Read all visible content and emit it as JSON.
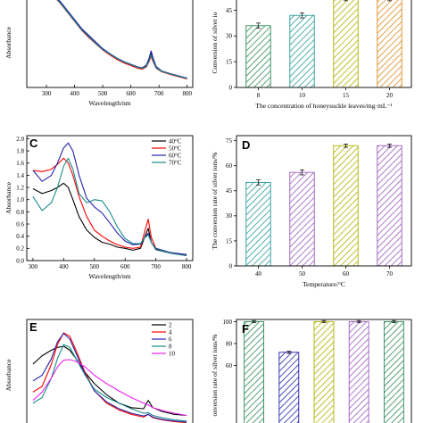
{
  "chart_data": [
    {
      "panel": "A",
      "type": "line",
      "label": "",
      "xlabel": "Wavelength/nm",
      "ylabel": "Absorbance",
      "xlim": [
        230,
        820
      ],
      "ylim": [
        0,
        2.0
      ],
      "xticks": [
        300,
        400,
        500,
        600,
        700,
        800
      ],
      "yticks": [],
      "series": [
        {
          "name": "",
          "color": "#000000",
          "x": [
            335,
            350,
            375,
            400,
            425,
            450,
            475,
            500,
            525,
            550,
            575,
            600,
            625,
            640,
            655,
            665,
            672,
            680,
            690,
            710,
            740,
            770,
            800
          ],
          "y": [
            2.0,
            1.9,
            1.7,
            1.5,
            1.3,
            1.15,
            1.0,
            0.85,
            0.74,
            0.64,
            0.56,
            0.5,
            0.44,
            0.42,
            0.48,
            0.62,
            0.76,
            0.6,
            0.45,
            0.36,
            0.3,
            0.25,
            0.2
          ]
        },
        {
          "name": "",
          "color": "#ff0000",
          "x": [
            335,
            350,
            375,
            400,
            425,
            450,
            475,
            500,
            525,
            550,
            575,
            600,
            625,
            640,
            655,
            665,
            672,
            680,
            690,
            710,
            740,
            770,
            800
          ],
          "y": [
            1.98,
            1.88,
            1.68,
            1.48,
            1.28,
            1.12,
            0.98,
            0.84,
            0.73,
            0.63,
            0.55,
            0.49,
            0.43,
            0.41,
            0.46,
            0.58,
            0.7,
            0.56,
            0.43,
            0.35,
            0.29,
            0.24,
            0.19
          ]
        },
        {
          "name": "",
          "color": "#2222aa",
          "x": [
            335,
            350,
            375,
            400,
            425,
            450,
            475,
            500,
            525,
            550,
            575,
            600,
            625,
            640,
            655,
            665,
            672,
            680,
            690,
            710,
            740,
            770,
            800
          ],
          "y": [
            2.02,
            1.92,
            1.72,
            1.52,
            1.32,
            1.17,
            1.02,
            0.87,
            0.76,
            0.66,
            0.58,
            0.52,
            0.46,
            0.44,
            0.5,
            0.66,
            0.82,
            0.64,
            0.47,
            0.37,
            0.31,
            0.26,
            0.21
          ]
        },
        {
          "name": "",
          "color": "#1a8a8a",
          "x": [
            335,
            350,
            375,
            400,
            425,
            450,
            475,
            500,
            525,
            550,
            575,
            600,
            625,
            640,
            655,
            665,
            672,
            680,
            690,
            710,
            740,
            770,
            800
          ],
          "y": [
            1.99,
            1.89,
            1.69,
            1.49,
            1.29,
            1.14,
            0.99,
            0.85,
            0.75,
            0.65,
            0.57,
            0.51,
            0.45,
            0.43,
            0.47,
            0.6,
            0.73,
            0.58,
            0.44,
            0.36,
            0.3,
            0.25,
            0.2
          ]
        }
      ]
    },
    {
      "panel": "B",
      "type": "bar",
      "label": "",
      "xlabel": "The concentration of honeysuckle leaves/mg·mL⁻¹",
      "ylabel": "Conversion of silver io",
      "categories": [
        "8",
        "10",
        "15",
        "20"
      ],
      "values": [
        36,
        42,
        52,
        52
      ],
      "errors": [
        1.5,
        1.5,
        1.5,
        1.5
      ],
      "colors": [
        "#2e8b57",
        "#2a9a9a",
        "#b0b000",
        "#e08a20"
      ],
      "ylim": [
        0,
        52
      ],
      "yticks": [
        0,
        15,
        30,
        45
      ]
    },
    {
      "panel": "C",
      "type": "line",
      "label": "C",
      "xlabel": "Wavelength/nm",
      "ylabel": "Absorbance",
      "xlim": [
        280,
        820
      ],
      "ylim": [
        0,
        2.05
      ],
      "xticks": [
        300,
        400,
        500,
        600,
        700,
        800
      ],
      "yticks": [
        0.0,
        0.2,
        0.4,
        0.6,
        0.8,
        1.0,
        1.2,
        1.4,
        1.6,
        1.8,
        2.0
      ],
      "series": [
        {
          "name": "40°C",
          "color": "#000000",
          "x": [
            300,
            330,
            360,
            380,
            400,
            415,
            430,
            450,
            475,
            500,
            525,
            550,
            575,
            600,
            625,
            650,
            665,
            675,
            685,
            700,
            750,
            800
          ],
          "y": [
            1.18,
            1.1,
            1.15,
            1.2,
            1.27,
            1.2,
            1.0,
            0.72,
            0.5,
            0.38,
            0.3,
            0.27,
            0.22,
            0.2,
            0.17,
            0.2,
            0.4,
            0.53,
            0.3,
            0.18,
            0.12,
            0.08
          ]
        },
        {
          "name": "50°C",
          "color": "#ff0000",
          "x": [
            300,
            330,
            360,
            380,
            400,
            415,
            430,
            450,
            475,
            500,
            525,
            550,
            575,
            600,
            625,
            650,
            665,
            675,
            685,
            700,
            750,
            800
          ],
          "y": [
            1.48,
            1.46,
            1.5,
            1.58,
            1.68,
            1.6,
            1.4,
            1.05,
            0.72,
            0.5,
            0.4,
            0.32,
            0.26,
            0.22,
            0.2,
            0.22,
            0.5,
            0.68,
            0.38,
            0.2,
            0.12,
            0.09
          ]
        },
        {
          "name": "60°C",
          "color": "#2222aa",
          "x": [
            300,
            330,
            360,
            380,
            400,
            415,
            430,
            450,
            475,
            500,
            525,
            550,
            575,
            600,
            625,
            650,
            665,
            675,
            685,
            700,
            750,
            800
          ],
          "y": [
            1.48,
            1.3,
            1.4,
            1.6,
            1.85,
            1.93,
            1.8,
            1.4,
            1.02,
            0.88,
            0.78,
            0.62,
            0.45,
            0.32,
            0.26,
            0.27,
            0.38,
            0.45,
            0.3,
            0.2,
            0.13,
            0.1
          ]
        },
        {
          "name": "70°C",
          "color": "#1a8a8a",
          "x": [
            300,
            330,
            360,
            380,
            400,
            415,
            430,
            450,
            475,
            500,
            525,
            550,
            575,
            600,
            625,
            650,
            665,
            675,
            685,
            700,
            750,
            800
          ],
          "y": [
            1.05,
            0.82,
            0.95,
            1.2,
            1.55,
            1.68,
            1.5,
            1.1,
            0.95,
            1.0,
            0.98,
            0.8,
            0.55,
            0.36,
            0.28,
            0.28,
            0.38,
            0.42,
            0.3,
            0.19,
            0.12,
            0.08
          ]
        }
      ]
    },
    {
      "panel": "D",
      "type": "bar",
      "label": "D",
      "xlabel": "Temperature/°C",
      "ylabel": "The conversion rate of silver ions/%",
      "categories": [
        "40",
        "50",
        "60",
        "70"
      ],
      "values": [
        50,
        56,
        72,
        72
      ],
      "errors": [
        1.5,
        1.5,
        1.0,
        1.0
      ],
      "colors": [
        "#2a9a9a",
        "#9b5bbf",
        "#b0b000",
        "#9b5bbf"
      ],
      "ylim": [
        0,
        78
      ],
      "yticks": [
        0,
        15,
        30,
        45,
        60,
        75
      ]
    },
    {
      "panel": "E",
      "type": "line",
      "label": "E",
      "xlabel": "",
      "ylabel": "Absorbance",
      "xlim": [
        280,
        820
      ],
      "ylim": [
        0,
        2.0
      ],
      "xticks": [],
      "yticks": [],
      "series": [
        {
          "name": "2",
          "color": "#000000",
          "x": [
            300,
            330,
            360,
            380,
            400,
            420,
            440,
            470,
            500,
            540,
            580,
            620,
            660,
            675,
            690,
            720,
            760,
            800
          ],
          "y": [
            1.2,
            1.35,
            1.45,
            1.5,
            1.52,
            1.45,
            1.3,
            1.05,
            0.85,
            0.65,
            0.5,
            0.42,
            0.4,
            0.55,
            0.42,
            0.35,
            0.3,
            0.28
          ]
        },
        {
          "name": "4",
          "color": "#ff0000",
          "x": [
            300,
            330,
            360,
            380,
            400,
            420,
            440,
            470,
            500,
            540,
            580,
            620,
            660,
            675,
            690,
            720,
            760,
            800
          ],
          "y": [
            0.7,
            0.8,
            1.2,
            1.55,
            1.76,
            1.7,
            1.45,
            1.05,
            0.72,
            0.5,
            0.38,
            0.3,
            0.25,
            0.3,
            0.24,
            0.2,
            0.17,
            0.15
          ]
        },
        {
          "name": "6",
          "color": "#2222aa",
          "x": [
            300,
            330,
            360,
            380,
            400,
            420,
            440,
            470,
            500,
            540,
            580,
            620,
            660,
            675,
            690,
            720,
            760,
            800
          ],
          "y": [
            0.9,
            1.0,
            1.3,
            1.6,
            1.75,
            1.65,
            1.4,
            1.02,
            0.72,
            0.52,
            0.4,
            0.32,
            0.27,
            0.3,
            0.25,
            0.21,
            0.18,
            0.16
          ]
        },
        {
          "name": "8",
          "color": "#1a8a8a",
          "x": [
            300,
            330,
            360,
            380,
            400,
            420,
            440,
            470,
            500,
            540,
            580,
            620,
            660,
            675,
            690,
            720,
            760,
            800
          ],
          "y": [
            0.5,
            0.6,
            0.95,
            1.3,
            1.55,
            1.5,
            1.3,
            1.0,
            0.75,
            0.6,
            0.5,
            0.4,
            0.32,
            0.33,
            0.28,
            0.24,
            0.2,
            0.18
          ]
        },
        {
          "name": "10",
          "color": "#ee22ee",
          "x": [
            300,
            330,
            360,
            380,
            400,
            420,
            440,
            470,
            500,
            540,
            580,
            620,
            660,
            675,
            690,
            720,
            760,
            800
          ],
          "y": [
            0.55,
            0.7,
            0.95,
            1.15,
            1.27,
            1.28,
            1.25,
            1.15,
            1.0,
            0.85,
            0.72,
            0.6,
            0.5,
            0.47,
            0.42,
            0.37,
            0.32,
            0.28
          ]
        }
      ]
    },
    {
      "panel": "F",
      "type": "bar",
      "label": "F",
      "xlabel": "",
      "ylabel": "onversion rate of silver ions/%",
      "categories": [
        "",
        "",
        "",
        "",
        ""
      ],
      "values": [
        100,
        72,
        100,
        100,
        100
      ],
      "errors": [
        1.0,
        1.0,
        1.0,
        1.0,
        1.0
      ],
      "colors": [
        "#2e8b57",
        "#2222aa",
        "#b0b000",
        "#9b5bbf",
        "#2e8b57"
      ],
      "ylim": [
        0,
        102
      ],
      "yticks": [
        60,
        80,
        100
      ]
    }
  ]
}
